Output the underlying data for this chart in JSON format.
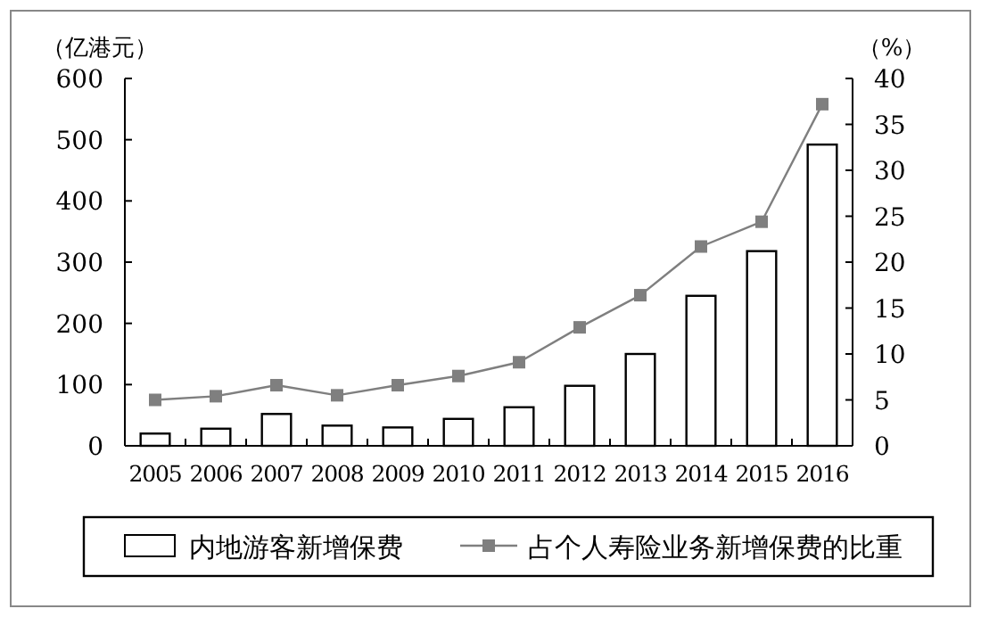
{
  "chart_data": {
    "type": "bar",
    "ylabel": "（亿港元）",
    "y2label": "（%）",
    "categories": [
      "2005",
      "2006",
      "2007",
      "2008",
      "2009",
      "2010",
      "2011",
      "2012",
      "2013",
      "2014",
      "2015",
      "2016"
    ],
    "series": [
      {
        "name": "内地游客新增保费",
        "color": "#ffffff",
        "values": [
          20,
          28,
          52,
          33,
          30,
          44,
          63,
          98,
          150,
          245,
          318,
          492
        ]
      },
      {
        "name": "占个人寿险业务新增保费的比重",
        "type": "line",
        "axis": "y2",
        "color": "#7f7f7f",
        "values": [
          5.0,
          5.4,
          6.6,
          5.5,
          6.6,
          7.6,
          9.1,
          12.9,
          16.4,
          21.7,
          24.4,
          37.2
        ]
      }
    ],
    "ylim": [
      0,
      600
    ],
    "yticks": [
      0,
      100,
      200,
      300,
      400,
      500,
      600
    ],
    "y2lim": [
      0,
      40
    ],
    "y2ticks": [
      0,
      5,
      10,
      15,
      20,
      25,
      30,
      35,
      40
    ],
    "marker": "square",
    "legend": "bottom"
  }
}
